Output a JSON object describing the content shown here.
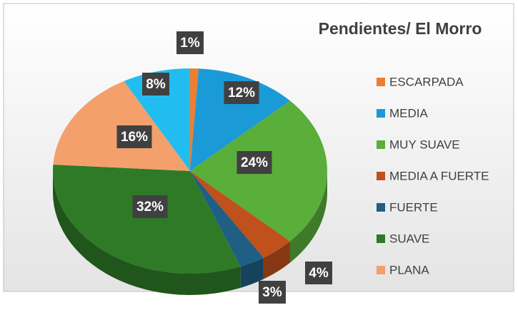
{
  "chart_data": {
    "type": "pie",
    "title": "Pendientes/ El Morro",
    "categories": [
      "ESCARPADA",
      "MEDIA",
      "MUY SUAVE",
      "MEDIA A FUERTE",
      "FUERTE",
      "SUAVE",
      "PLANA",
      null
    ],
    "values": [
      1,
      12,
      24,
      4,
      3,
      32,
      16,
      8
    ],
    "value_labels": [
      "1%",
      "12%",
      "24%",
      "4%",
      "3%",
      "32%",
      "16%",
      "8%"
    ],
    "colors": [
      "#ed7d31",
      "#1a9ad6",
      "#5aae3a",
      "#c0501c",
      "#1f5f84",
      "#2e7a27",
      "#f4a06c",
      "#22bdf0"
    ],
    "legend": "right"
  }
}
